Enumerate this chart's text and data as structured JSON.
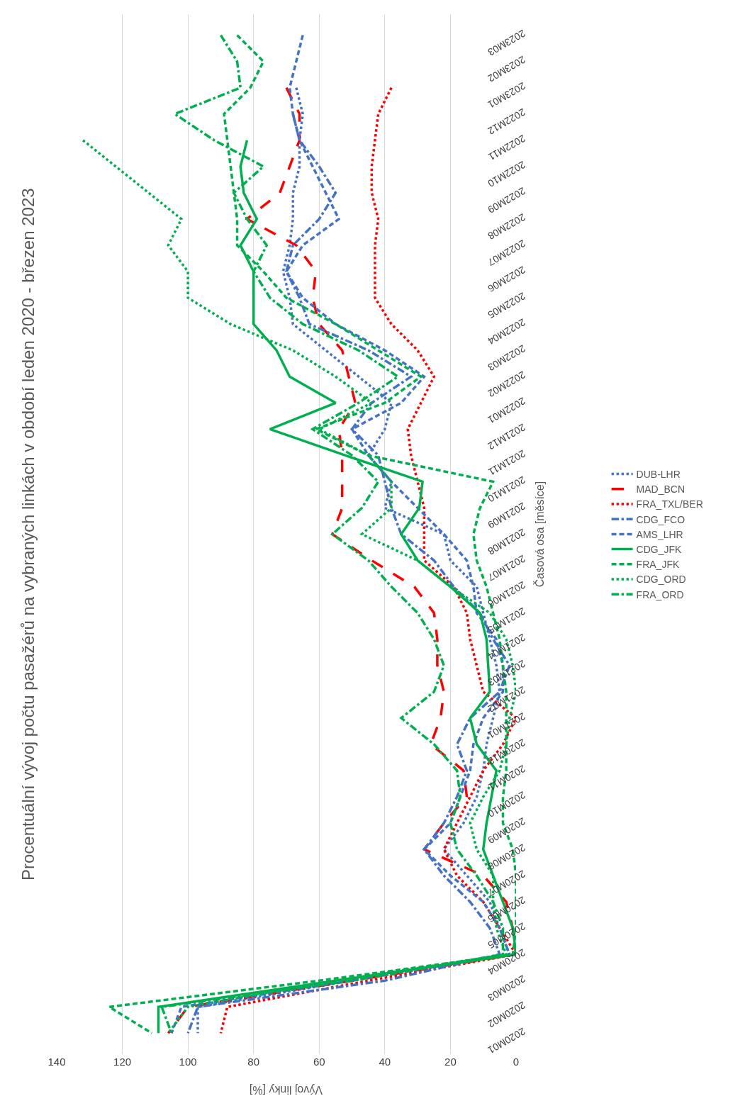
{
  "chart_data": {
    "type": "line",
    "orientation": "horizontal",
    "title": "Procentuální vývoj počtu pasažérů na vybraných linkách v období leden 2020 - březen 2023",
    "xlabel": "Vývoj linky [%]",
    "ylabel": "Časová osa [měsíce]",
    "categories": [
      "2023M03",
      "2023M02",
      "2023M01",
      "2022M12",
      "2022M11",
      "2022M10",
      "2022M09",
      "2022M08",
      "2022M07",
      "2022M06",
      "2022M05",
      "2022M04",
      "2022M03",
      "2022M02",
      "2022M01",
      "2021M12",
      "2021M11",
      "2021M10",
      "2021M09",
      "2021M08",
      "2021M07",
      "2021M06",
      "2021M05",
      "2021M04",
      "2021M03",
      "2021M02",
      "2021M01",
      "2020M12",
      "2020M11",
      "2020M10",
      "2020M09",
      "2020M08",
      "2020M07",
      "2020M06",
      "2020M05",
      "2020M04",
      "2020M03",
      "2020M02",
      "2020M01"
    ],
    "xlim": [
      140,
      0
    ],
    "xticks": [
      140,
      120,
      100,
      80,
      60,
      40,
      20,
      0
    ],
    "grid": "x",
    "legend": "right",
    "marker": "none",
    "series": [
      {
        "name": "DUB-LHR",
        "color": "#4472c4",
        "line_style": "dotted",
        "values": [
          null,
          null,
          67,
          65,
          66,
          66,
          68,
          68,
          69,
          71,
          69,
          68,
          58,
          48,
          38,
          40,
          45,
          38,
          40,
          22,
          20,
          12,
          10,
          8,
          6,
          5,
          7,
          9,
          10,
          12,
          16,
          22,
          15,
          8,
          5,
          2,
          50,
          97,
          97
        ]
      },
      {
        "name": "MAD_BCN",
        "color": "#ff0000",
        "line_style": "long_dashed",
        "values": [
          null,
          null,
          70,
          66,
          66,
          69,
          72,
          82,
          67,
          61,
          62,
          60,
          53,
          51,
          49,
          54,
          53,
          53,
          53,
          56,
          44,
          31,
          25,
          24,
          24,
          22,
          23,
          26,
          16,
          15,
          22,
          28,
          10,
          3,
          1,
          0,
          50,
          100,
          106
        ]
      },
      {
        "name": "FRA_TXL/BER",
        "color": "#ff0000",
        "line_style": "dotted",
        "values": [
          null,
          null,
          38,
          42,
          43,
          44,
          44,
          42,
          43,
          43,
          43,
          38,
          30,
          25,
          29,
          33,
          32,
          30,
          28,
          28,
          28,
          19,
          15,
          14,
          12,
          10,
          0,
          4,
          10,
          14,
          18,
          22,
          18,
          10,
          5,
          0,
          45,
          88,
          90
        ]
      },
      {
        "name": "CDG_FCO",
        "color": "#4472c4",
        "line_style": "dashdot",
        "values": [
          null,
          null,
          null,
          68,
          66,
          60,
          55,
          60,
          68,
          70,
          66,
          63,
          45,
          32,
          44,
          50,
          42,
          40,
          38,
          35,
          25,
          19,
          11,
          7,
          2,
          5,
          14,
          18,
          15,
          18,
          22,
          28,
          22,
          14,
          8,
          5,
          40,
          97,
          100
        ]
      },
      {
        "name": "AMS_LHR",
        "color": "#4472c4",
        "line_style": "dashed",
        "values": [
          65,
          67,
          69,
          68,
          66,
          62,
          58,
          54,
          65,
          70,
          65,
          55,
          40,
          28,
          35,
          50,
          45,
          38,
          30,
          22,
          15,
          13,
          12,
          6,
          4,
          4,
          10,
          13,
          14,
          17,
          20,
          28,
          20,
          10,
          5,
          2,
          50,
          102,
          105
        ]
      },
      {
        "name": "CDG_JFK",
        "color": "#00b050",
        "line_style": "solid",
        "values": [
          null,
          null,
          null,
          null,
          82,
          84,
          83,
          79,
          84,
          80,
          80,
          80,
          73,
          69,
          55,
          75,
          52,
          28.5,
          29.5,
          35,
          30,
          20,
          11,
          9,
          8.5,
          8,
          14,
          12,
          6,
          7.5,
          9,
          10,
          7,
          4,
          1,
          0,
          55,
          109,
          109
        ]
      },
      {
        "name": "FRA_JFK",
        "color": "#00b050",
        "line_style": "dashed",
        "values": [
          85,
          77,
          81,
          89,
          88,
          87,
          86,
          85,
          85,
          77,
          70,
          55,
          42,
          29,
          40,
          61,
          45,
          7,
          11,
          13,
          12,
          9,
          7,
          5,
          4,
          3,
          3,
          3,
          3,
          4,
          4,
          1,
          0,
          0,
          0,
          1,
          60,
          124,
          111
        ]
      },
      {
        "name": "CDG_ORD",
        "color": "#00b050",
        "line_style": "dotted",
        "values": [
          null,
          null,
          null,
          null,
          132,
          122,
          112,
          102,
          106,
          100,
          100,
          87,
          68,
          55,
          44,
          60,
          45,
          38,
          38,
          47,
          30,
          20,
          8,
          3,
          1,
          0,
          2,
          3,
          5,
          10,
          14,
          12,
          7,
          7,
          6,
          3,
          55,
          100,
          106
        ]
      },
      {
        "name": "FRA_ORD",
        "color": "#00b050",
        "line_style": "dashdot",
        "values": [
          90,
          85,
          84,
          104,
          92,
          77,
          86,
          82,
          76,
          80,
          75,
          65,
          48,
          36,
          48,
          62,
          50,
          42,
          47,
          56,
          45,
          38,
          30,
          25,
          22,
          25,
          35,
          25,
          18,
          17,
          20,
          18,
          12,
          7,
          4,
          4,
          50,
          108,
          105
        ]
      }
    ]
  }
}
